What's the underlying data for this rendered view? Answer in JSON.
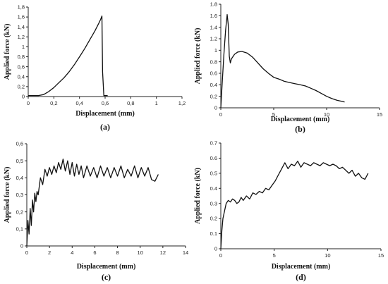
{
  "chart_data": [
    {
      "id": "a",
      "type": "line",
      "panel_label": "(a)",
      "xlabel": "Displacement (mm)",
      "ylabel": "Applied force (kN)",
      "xlim": [
        0,
        1.2
      ],
      "ylim": [
        0,
        1.8
      ],
      "xticks": [
        0,
        0.2,
        0.4,
        0.6,
        0.8,
        1,
        1.2
      ],
      "xtick_labels": [
        "0",
        "0,2",
        "0,4",
        "0,6",
        "0,8",
        "1",
        "1,2"
      ],
      "yticks": [
        0,
        0.2,
        0.4,
        0.6,
        0.8,
        1,
        1.2,
        1.4,
        1.6,
        1.8
      ],
      "ytick_labels": [
        "0",
        "0,2",
        "0,4",
        "0,6",
        "0,8",
        "1",
        "1,2",
        "1,4",
        "1,6",
        "1,8"
      ],
      "series": [
        {
          "x": [
            0,
            0.08,
            0.12,
            0.16,
            0.2,
            0.24,
            0.28,
            0.32,
            0.36,
            0.4,
            0.44,
            0.48,
            0.52,
            0.55,
            0.565,
            0.575,
            0.58,
            0.59,
            0.62
          ],
          "y": [
            0.02,
            0.02,
            0.04,
            0.1,
            0.18,
            0.28,
            0.38,
            0.5,
            0.64,
            0.8,
            0.96,
            1.14,
            1.32,
            1.47,
            1.55,
            1.62,
            0.5,
            0.02,
            0.02
          ]
        }
      ]
    },
    {
      "id": "b",
      "type": "line",
      "panel_label": "(b)",
      "xlabel": "Displacement  (mm)",
      "ylabel": "Applied force (kN)",
      "xlim": [
        0,
        15
      ],
      "ylim": [
        0,
        1.8
      ],
      "xticks": [
        0,
        5,
        10,
        15
      ],
      "xtick_labels": [
        "0",
        "5",
        "10",
        "15"
      ],
      "yticks": [
        0,
        0.2,
        0.4,
        0.6,
        0.8,
        1,
        1.2,
        1.4,
        1.6,
        1.8
      ],
      "ytick_labels": [
        "0",
        "0.2",
        "0.4",
        "0.6",
        "0.8",
        "1",
        "1.2",
        "1.4",
        "1.6",
        "1.8"
      ],
      "series": [
        {
          "x": [
            0,
            0.15,
            0.3,
            0.45,
            0.6,
            0.7,
            0.8,
            0.9,
            1.0,
            1.3,
            1.6,
            2.0,
            2.5,
            3.0,
            3.5,
            4.0,
            4.5,
            5.0,
            5.5,
            6.0,
            6.5,
            7.0,
            7.5,
            8.0,
            8.5,
            9.0,
            9.5,
            10.0,
            10.5,
            11.0,
            11.5,
            11.7
          ],
          "y": [
            0,
            0.5,
            0.95,
            1.35,
            1.62,
            1.45,
            0.9,
            0.78,
            0.85,
            0.93,
            0.97,
            0.98,
            0.95,
            0.88,
            0.78,
            0.68,
            0.6,
            0.53,
            0.5,
            0.46,
            0.44,
            0.42,
            0.4,
            0.38,
            0.34,
            0.3,
            0.25,
            0.2,
            0.16,
            0.13,
            0.11,
            0.1
          ]
        }
      ]
    },
    {
      "id": "c",
      "type": "line",
      "panel_label": "(c)",
      "xlabel": "Displacement (mm)",
      "ylabel": "Applied force (kN)",
      "xlim": [
        0,
        14
      ],
      "ylim": [
        0,
        0.6
      ],
      "xticks": [
        0,
        2,
        4,
        6,
        8,
        10,
        12,
        14
      ],
      "xtick_labels": [
        "0",
        "2",
        "4",
        "6",
        "8",
        "10",
        "12",
        "14"
      ],
      "yticks": [
        0,
        0.1,
        0.2,
        0.3,
        0.4,
        0.5,
        0.6
      ],
      "ytick_labels": [
        "0",
        "0,1",
        "0,2",
        "0,3",
        "0,4",
        "0,5",
        "0,6"
      ],
      "series": [
        {
          "x": [
            0,
            0.1,
            0.2,
            0.3,
            0.4,
            0.5,
            0.6,
            0.7,
            0.8,
            0.9,
            1.0,
            1.2,
            1.4,
            1.6,
            1.8,
            2.0,
            2.2,
            2.4,
            2.6,
            2.8,
            3.0,
            3.2,
            3.4,
            3.6,
            3.8,
            4.0,
            4.2,
            4.4,
            4.6,
            4.8,
            5.0,
            5.3,
            5.6,
            5.9,
            6.2,
            6.5,
            6.8,
            7.1,
            7.4,
            7.7,
            8.0,
            8.3,
            8.6,
            8.9,
            9.2,
            9.5,
            9.8,
            10.1,
            10.4,
            10.7,
            11.0,
            11.3,
            11.6
          ],
          "y": [
            0,
            0.15,
            0.07,
            0.22,
            0.12,
            0.27,
            0.2,
            0.31,
            0.26,
            0.32,
            0.3,
            0.4,
            0.36,
            0.45,
            0.41,
            0.46,
            0.42,
            0.47,
            0.43,
            0.49,
            0.45,
            0.51,
            0.44,
            0.5,
            0.42,
            0.49,
            0.41,
            0.48,
            0.42,
            0.47,
            0.4,
            0.47,
            0.41,
            0.46,
            0.4,
            0.47,
            0.41,
            0.46,
            0.4,
            0.46,
            0.41,
            0.47,
            0.4,
            0.45,
            0.41,
            0.47,
            0.4,
            0.46,
            0.41,
            0.46,
            0.39,
            0.38,
            0.42
          ]
        }
      ]
    },
    {
      "id": "d",
      "type": "line",
      "panel_label": "(d)",
      "xlabel": "Displacement (mm)",
      "ylabel": "Applied force (kN)",
      "xlim": [
        0,
        15
      ],
      "ylim": [
        0,
        0.7
      ],
      "xticks": [
        0,
        5,
        10,
        15
      ],
      "xtick_labels": [
        "0",
        "5",
        "10",
        "15"
      ],
      "yticks": [
        0,
        0.1,
        0.2,
        0.3,
        0.4,
        0.5,
        0.6,
        0.7
      ],
      "ytick_labels": [
        "0",
        "0.1",
        "0.2",
        "0.3",
        "0.4",
        "0.5",
        "0.6",
        "0.7"
      ],
      "series": [
        {
          "x": [
            0,
            0.1,
            0.2,
            0.35,
            0.5,
            0.7,
            0.9,
            1.1,
            1.3,
            1.5,
            1.7,
            1.9,
            2.1,
            2.4,
            2.7,
            3.0,
            3.3,
            3.6,
            3.9,
            4.2,
            4.5,
            4.8,
            5.1,
            5.4,
            5.7,
            6.0,
            6.3,
            6.6,
            6.9,
            7.2,
            7.5,
            7.8,
            8.1,
            8.4,
            8.7,
            9.0,
            9.3,
            9.6,
            9.9,
            10.2,
            10.5,
            10.8,
            11.1,
            11.4,
            11.7,
            12.0,
            12.3,
            12.6,
            12.9,
            13.2,
            13.5,
            13.8
          ],
          "y": [
            0,
            0.12,
            0.2,
            0.25,
            0.3,
            0.32,
            0.31,
            0.33,
            0.32,
            0.3,
            0.31,
            0.34,
            0.32,
            0.35,
            0.33,
            0.37,
            0.36,
            0.38,
            0.37,
            0.4,
            0.39,
            0.42,
            0.45,
            0.49,
            0.53,
            0.57,
            0.53,
            0.56,
            0.55,
            0.58,
            0.54,
            0.57,
            0.56,
            0.55,
            0.57,
            0.56,
            0.55,
            0.57,
            0.56,
            0.55,
            0.56,
            0.55,
            0.53,
            0.54,
            0.52,
            0.5,
            0.52,
            0.48,
            0.5,
            0.47,
            0.46,
            0.5
          ]
        }
      ]
    }
  ]
}
